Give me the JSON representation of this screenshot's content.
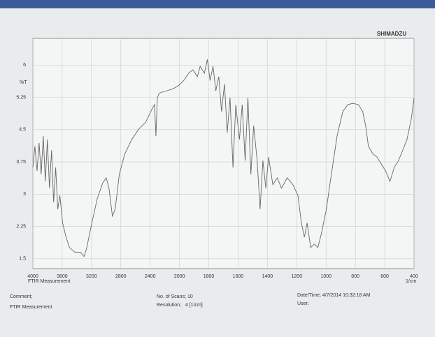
{
  "chart_data": {
    "type": "line",
    "brand": "SHIMADZU",
    "ylabel": "%T",
    "xlabel": "FTIR Measurement",
    "xunit": "1/cm",
    "x": [
      4000,
      3972,
      3943,
      3915,
      3887,
      3858,
      3830,
      3802,
      3774,
      3745,
      3717,
      3689,
      3660,
      3632,
      3594,
      3547,
      3500,
      3425,
      3349,
      3302,
      3264,
      3217,
      3123,
      3047,
      3000,
      2962,
      2915,
      2877,
      2821,
      2745,
      2651,
      2557,
      2462,
      2368,
      2340,
      2321,
      2302,
      2274,
      2179,
      2085,
      2009,
      1971,
      1937,
      1908,
      1878,
      1859,
      1830,
      1810,
      1791,
      1771,
      1752,
      1732,
      1713,
      1693,
      1674,
      1655,
      1635,
      1616,
      1591,
      1572,
      1552,
      1533,
      1513,
      1494,
      1470,
      1450,
      1431,
      1411,
      1392,
      1363,
      1333,
      1304,
      1265,
      1226,
      1192,
      1168,
      1148,
      1129,
      1105,
      1080,
      1056,
      1032,
      998,
      964,
      925,
      886,
      852,
      818,
      779,
      750,
      730,
      711,
      681,
      652,
      623,
      594,
      564,
      535,
      506,
      477,
      448,
      418,
      400
    ],
    "values": [
      3.62,
      4.11,
      3.54,
      4.19,
      3.46,
      4.35,
      3.3,
      4.27,
      3.14,
      4.02,
      2.81,
      3.62,
      2.65,
      2.97,
      2.33,
      2.0,
      1.76,
      1.65,
      1.65,
      1.55,
      1.76,
      2.16,
      2.89,
      3.26,
      3.38,
      3.14,
      2.49,
      2.65,
      3.46,
      3.94,
      4.27,
      4.51,
      4.67,
      5.0,
      5.08,
      4.35,
      5.24,
      5.35,
      5.4,
      5.45,
      5.53,
      5.64,
      5.81,
      5.89,
      5.73,
      5.97,
      5.81,
      6.13,
      5.64,
      5.97,
      5.4,
      5.73,
      4.92,
      5.56,
      4.43,
      5.24,
      3.62,
      5.08,
      4.27,
      5.08,
      3.78,
      5.24,
      3.46,
      4.59,
      3.78,
      2.65,
      3.78,
      3.14,
      3.86,
      3.22,
      3.38,
      3.14,
      3.38,
      3.22,
      2.97,
      2.33,
      2.0,
      2.33,
      1.76,
      1.84,
      1.76,
      2.08,
      2.65,
      3.46,
      4.35,
      4.92,
      5.08,
      5.11,
      5.08,
      4.92,
      4.59,
      4.11,
      3.94,
      3.86,
      3.7,
      3.54,
      3.3,
      3.62,
      3.78,
      4.02,
      4.27,
      4.76,
      5.24
    ],
    "color": "#666666",
    "xlim": [
      4000,
      400
    ],
    "xticks": [
      4000,
      3600,
      3200,
      2800,
      2400,
      2000,
      1800,
      1600,
      1400,
      1200,
      1000,
      800,
      600,
      400
    ],
    "ylim": [
      1.27,
      6.62
    ],
    "yticks": [
      1.5,
      2.25,
      3,
      3.75,
      4.5,
      5.25,
      6
    ],
    "grid": true
  },
  "footer": {
    "comment_label": "Comment;",
    "comment": "FTIR Measurement",
    "scans": "No. of Scans; 10",
    "resolution": "Resolution;   4 [1/cm]",
    "datetime": "Date/Time; 4/7/2014 10:32:18 AM",
    "user": "User;"
  }
}
